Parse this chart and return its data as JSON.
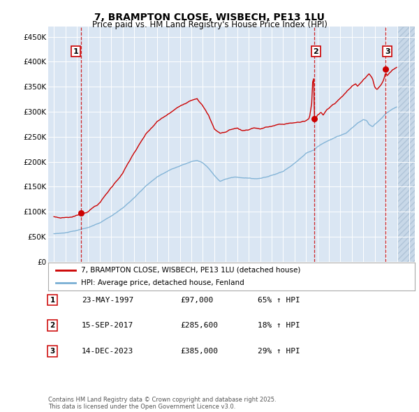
{
  "title": "7, BRAMPTON CLOSE, WISBECH, PE13 1LU",
  "subtitle": "Price paid vs. HM Land Registry's House Price Index (HPI)",
  "ylabel_ticks": [
    "£0",
    "£50K",
    "£100K",
    "£150K",
    "£200K",
    "£250K",
    "£300K",
    "£350K",
    "£400K",
    "£450K"
  ],
  "ytick_values": [
    0,
    50000,
    100000,
    150000,
    200000,
    250000,
    300000,
    350000,
    400000,
    450000
  ],
  "ylim": [
    0,
    470000
  ],
  "xlim_start": 1994.5,
  "xlim_end": 2026.5,
  "background_color": "#dae6f3",
  "grid_color": "#ffffff",
  "red_line_color": "#cc0000",
  "blue_line_color": "#7aafd4",
  "sale_marker_color": "#cc0000",
  "dashed_line_color": "#cc0000",
  "transaction_1": {
    "date_decimal": 1997.39,
    "price": 97000,
    "label": "1"
  },
  "transaction_2": {
    "date_decimal": 2017.71,
    "price": 285600,
    "label": "2"
  },
  "transaction_3": {
    "date_decimal": 2023.95,
    "price": 385000,
    "label": "3"
  },
  "legend_label_red": "7, BRAMPTON CLOSE, WISBECH, PE13 1LU (detached house)",
  "legend_label_blue": "HPI: Average price, detached house, Fenland",
  "table_rows": [
    {
      "num": "1",
      "date": "23-MAY-1997",
      "price": "£97,000",
      "hpi": "65% ↑ HPI"
    },
    {
      "num": "2",
      "date": "15-SEP-2017",
      "price": "£285,600",
      "hpi": "18% ↑ HPI"
    },
    {
      "num": "3",
      "date": "14-DEC-2023",
      "price": "£385,000",
      "hpi": "29% ↑ HPI"
    }
  ],
  "footer": "Contains HM Land Registry data © Crown copyright and database right 2025.\nThis data is licensed under the Open Government Licence v3.0.",
  "hatch_start": 2025.0
}
